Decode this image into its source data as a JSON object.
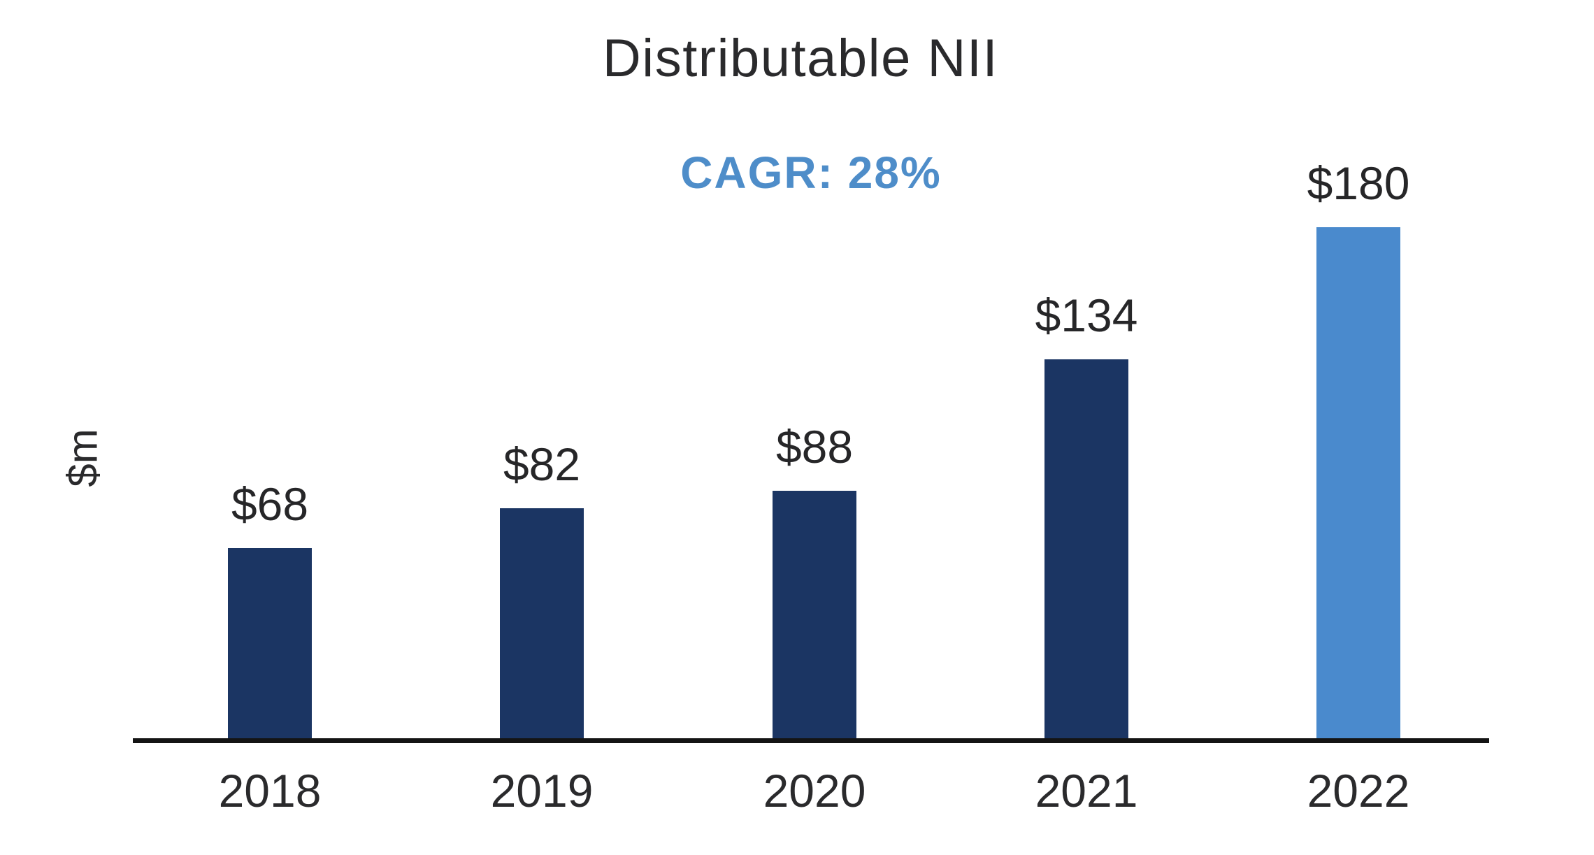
{
  "chart_data": {
    "type": "bar",
    "title": "Distributable NII",
    "annotation": "CAGR: 28%",
    "ylabel": "$m",
    "xlabel": "",
    "categories": [
      "2018",
      "2019",
      "2020",
      "2021",
      "2022"
    ],
    "values": [
      68,
      82,
      88,
      134,
      180
    ],
    "value_labels": [
      "$68",
      "$82",
      "$88",
      "$134",
      "$180"
    ],
    "bar_colors": [
      "#1B3563",
      "#1B3563",
      "#1B3563",
      "#1B3563",
      "#4A8ACD"
    ],
    "ylim": [
      0,
      200
    ],
    "gridlines": false,
    "legend": "none",
    "baseline_axis": true
  },
  "colors": {
    "bar_dark_navy": "#1B3563",
    "bar_highlight_blue": "#4A8ACD",
    "annotation_blue": "#4E8DC9",
    "text_dark": "#2A2A2C",
    "axis_black": "#141414",
    "background": "#FFFFFF"
  }
}
